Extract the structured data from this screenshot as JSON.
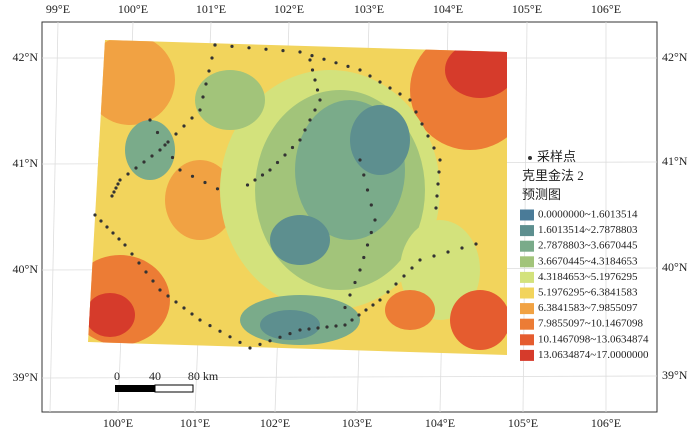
{
  "map": {
    "lon_top": [
      "99°E",
      "100°E",
      "101°E",
      "102°E",
      "103°E",
      "104°E",
      "105°E",
      "106°E"
    ],
    "lon_bottom": [
      "100°E",
      "101°E",
      "102°E",
      "103°E",
      "104°E",
      "105°E",
      "106°E"
    ],
    "lat_left": [
      "42°N",
      "41°N",
      "40°N",
      "39°N"
    ],
    "lat_right": [
      "42°N",
      "41°N",
      "40°N",
      "39°N"
    ],
    "legend": {
      "points_label": "采样点",
      "title": "克里金法 2",
      "subtitle": "预测图",
      "items": [
        {
          "label": "0.0000000~1.6013514",
          "color": "#4a7b98"
        },
        {
          "label": "1.6013514~2.7878803",
          "color": "#5d8f8f"
        },
        {
          "label": "2.7878803~3.6670445",
          "color": "#7aab8a"
        },
        {
          "label": "3.6670445~4.3184653",
          "color": "#a2c47a"
        },
        {
          "label": "4.3184653~5.1976295",
          "color": "#d3e27c"
        },
        {
          "label": "5.1976295~6.3841583",
          "color": "#f2d45c"
        },
        {
          "label": "6.3841583~7.9855097",
          "color": "#f1a243"
        },
        {
          "label": "7.9855097~10.1467098",
          "color": "#ec7c35"
        },
        {
          "label": "10.1467098~13.0634874",
          "color": "#e55c2f"
        },
        {
          "label": "13.0634874~17.0000000",
          "color": "#d63b2b"
        }
      ]
    },
    "scale": {
      "labels": [
        "0",
        "40",
        "80 km"
      ]
    }
  }
}
